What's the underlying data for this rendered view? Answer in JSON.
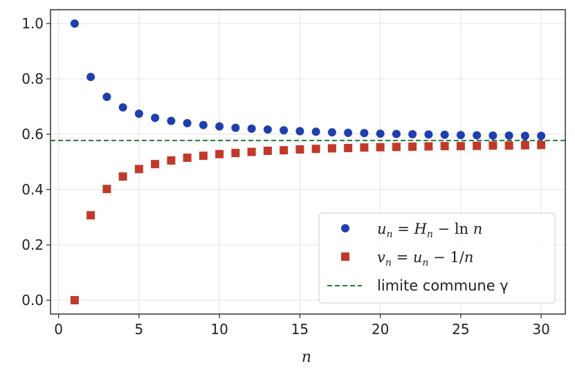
{
  "chart_data": {
    "type": "scatter",
    "xlabel": "n",
    "ylabel": "",
    "xlim": [
      -0.5,
      31.5
    ],
    "ylim": [
      -0.05,
      1.05
    ],
    "xticks": [
      0,
      5,
      10,
      15,
      20,
      25,
      30
    ],
    "yticks": [
      0.0,
      0.2,
      0.4,
      0.6,
      0.8,
      1.0
    ],
    "xtick_labels": [
      "0",
      "5",
      "10",
      "15",
      "20",
      "25",
      "30"
    ],
    "ytick_labels": [
      "0.0",
      "0.2",
      "0.4",
      "0.6",
      "0.8",
      "1.0"
    ],
    "grid": true,
    "legend_position": "lower-right",
    "x": [
      1,
      2,
      3,
      4,
      5,
      6,
      7,
      8,
      9,
      10,
      11,
      12,
      13,
      14,
      15,
      16,
      17,
      18,
      19,
      20,
      21,
      22,
      23,
      24,
      25,
      26,
      27,
      28,
      29,
      30
    ],
    "series": [
      {
        "name": "u_n = H_n − ln n",
        "marker": "circle",
        "color": "#1f3fb0",
        "values": [
          1.0,
          0.807,
          0.735,
          0.697,
          0.674,
          0.659,
          0.648,
          0.64,
          0.633,
          0.628,
          0.623,
          0.62,
          0.617,
          0.614,
          0.611,
          0.609,
          0.607,
          0.605,
          0.604,
          0.602,
          0.601,
          0.6,
          0.599,
          0.598,
          0.597,
          0.596,
          0.595,
          0.595,
          0.594,
          0.594
        ]
      },
      {
        "name": "v_n = u_n − 1/n",
        "marker": "square",
        "color": "#c0392b",
        "values": [
          0.0,
          0.307,
          0.402,
          0.447,
          0.474,
          0.492,
          0.505,
          0.515,
          0.522,
          0.528,
          0.532,
          0.536,
          0.54,
          0.542,
          0.545,
          0.547,
          0.549,
          0.55,
          0.552,
          0.553,
          0.554,
          0.555,
          0.556,
          0.557,
          0.557,
          0.558,
          0.559,
          0.559,
          0.56,
          0.561
        ]
      }
    ],
    "reference_line": {
      "name": "limite commune γ",
      "value": 0.5772,
      "color": "#1e7b34",
      "style": "dashed"
    },
    "legend": {
      "u_label": {
        "var": "u",
        "sub": "n",
        "eq": " = ",
        "rhs1": "H",
        "rhs1sub": "n",
        "rhs2": " − ln ",
        "rhs3": "n"
      },
      "v_label": {
        "var": "v",
        "sub": "n",
        "eq": " = ",
        "rhs1": "u",
        "rhs1sub": "n",
        "rhs2": " − 1/",
        "rhs3": "n"
      },
      "gamma_label": "limite commune γ"
    }
  }
}
